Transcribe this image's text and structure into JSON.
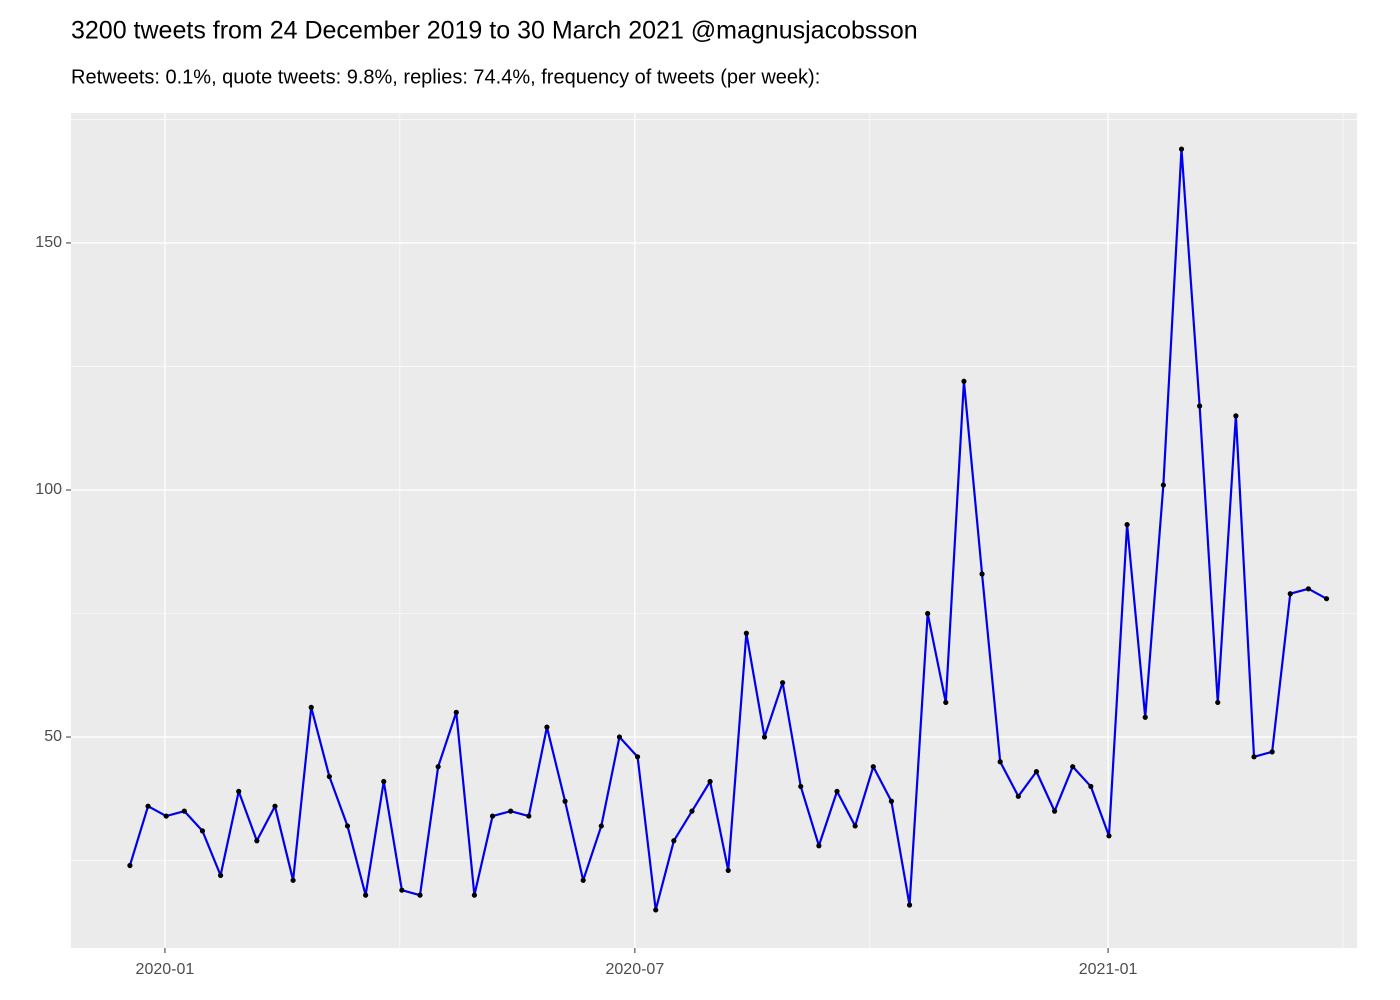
{
  "chart_data": {
    "type": "line",
    "title": "3200 tweets from 24 December 2019 to 30 March 2021 @magnusjacobsson",
    "subtitle": "Retweets: 0.1%, quote tweets: 9.8%, replies: 74.4%, frequency of tweets (per week):",
    "values": [
      24,
      36,
      34,
      35,
      31,
      22,
      39,
      29,
      36,
      21,
      56,
      42,
      32,
      18,
      41,
      19,
      18,
      44,
      55,
      18,
      34,
      35,
      34,
      52,
      37,
      21,
      32,
      50,
      46,
      15,
      29,
      35,
      41,
      23,
      71,
      50,
      61,
      40,
      28,
      39,
      32,
      44,
      37,
      16,
      75,
      57,
      122,
      83,
      45,
      38,
      43,
      35,
      44,
      40,
      30,
      93,
      54,
      101,
      169,
      117,
      57,
      115,
      46,
      47,
      79,
      80,
      78
    ],
    "color": "#0000ee",
    "point_color": "#000000",
    "xlim": [
      -3.25,
      67.68
    ],
    "xticks": [
      {
        "value": 1.93,
        "label": "2020-01"
      },
      {
        "value": 27.85,
        "label": "2020-07"
      },
      {
        "value": 53.95,
        "label": "2021-01"
      }
    ],
    "ylim": [
      7.3,
      176.3
    ],
    "yticks": [
      50,
      100,
      150
    ],
    "grid": true
  }
}
